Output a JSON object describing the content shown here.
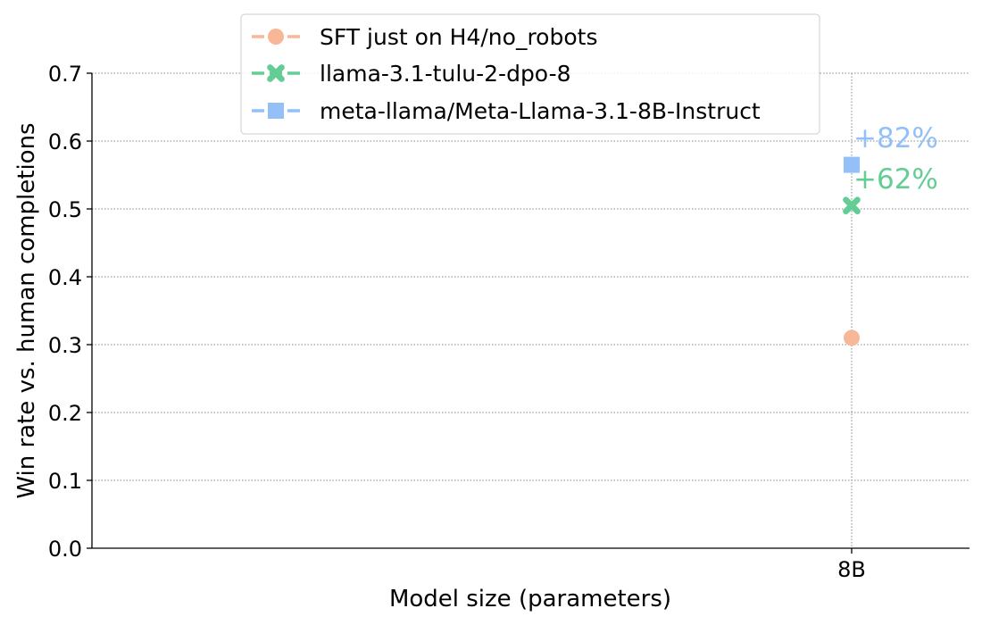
{
  "chart_data": {
    "type": "scatter",
    "xlabel": "Model size (parameters)",
    "ylabel": "Win rate vs. human completions",
    "x_categories": [
      "8B"
    ],
    "ylim": [
      0,
      0.7
    ],
    "yticks": [
      "0.0",
      "0.1",
      "0.2",
      "0.3",
      "0.4",
      "0.5",
      "0.6",
      "0.7"
    ],
    "grid": true,
    "legend_position": "top-center",
    "series": [
      {
        "name": "SFT just on H4/no_robots",
        "marker": "circle",
        "color": "#f8b796",
        "points": [
          {
            "x": "8B",
            "y": 0.31
          }
        ]
      },
      {
        "name": "llama-3.1-tulu-2-dpo-8",
        "marker": "x",
        "color": "#64cd95",
        "points": [
          {
            "x": "8B",
            "y": 0.505
          }
        ]
      },
      {
        "name": "meta-llama/Meta-Llama-3.1-8B-Instruct",
        "marker": "square",
        "color": "#92c0f7",
        "points": [
          {
            "x": "8B",
            "y": 0.565
          }
        ]
      }
    ],
    "annotations": [
      {
        "text": "+82%",
        "color": "#92c0f7",
        "x": "8B",
        "y": 0.605
      },
      {
        "text": "+62%",
        "color": "#64cd95",
        "x": "8B",
        "y": 0.545
      }
    ]
  }
}
